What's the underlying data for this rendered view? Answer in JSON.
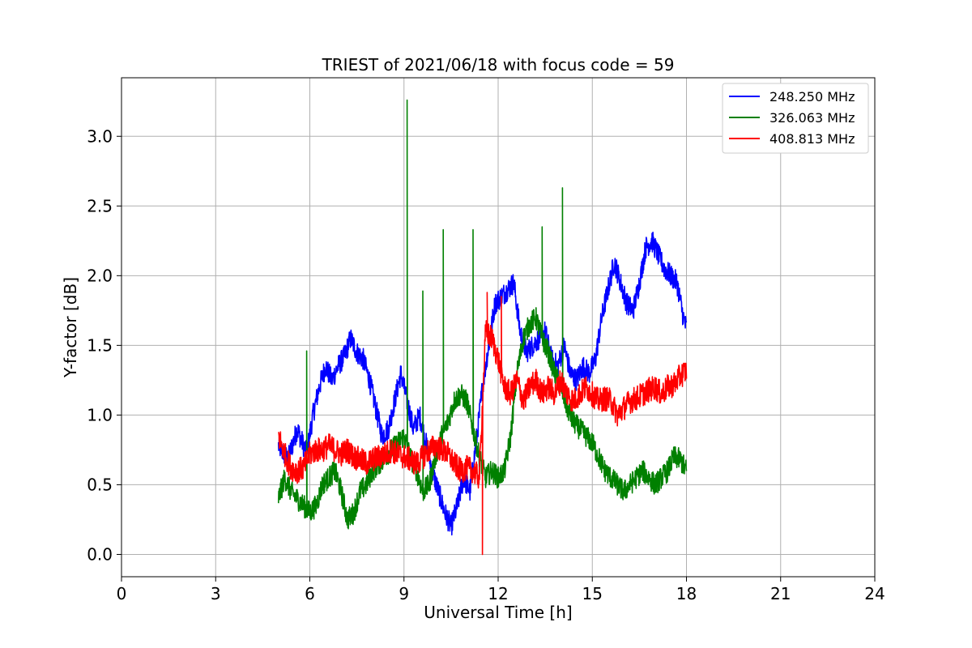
{
  "chart_data": {
    "type": "line",
    "title": "TRIEST of 2021/06/18 with focus code = 59",
    "xlabel": "Universal Time [h]",
    "ylabel": "Y-factor [dB]",
    "xlim": [
      0,
      24
    ],
    "ylim": [
      -0.16,
      3.42
    ],
    "xticks": [
      0,
      3,
      6,
      9,
      12,
      15,
      18,
      21,
      24
    ],
    "yticks": [
      0.0,
      0.5,
      1.0,
      1.5,
      2.0,
      2.5,
      3.0
    ],
    "ytick_labels": [
      "0.0",
      "0.5",
      "1.0",
      "1.5",
      "2.0",
      "2.5",
      "3.0"
    ],
    "grid": true,
    "legend_position": "top-right",
    "series": [
      {
        "name": "248.250 MHz",
        "color": "#0000ff",
        "points": [
          [
            5.0,
            0.78
          ],
          [
            5.3,
            0.68
          ],
          [
            5.6,
            0.9
          ],
          [
            5.9,
            0.72
          ],
          [
            6.1,
            1.0
          ],
          [
            6.3,
            1.2
          ],
          [
            6.5,
            1.35
          ],
          [
            6.7,
            1.25
          ],
          [
            6.9,
            1.35
          ],
          [
            7.1,
            1.42
          ],
          [
            7.3,
            1.55
          ],
          [
            7.5,
            1.45
          ],
          [
            7.7,
            1.4
          ],
          [
            7.9,
            1.25
          ],
          [
            8.1,
            1.05
          ],
          [
            8.3,
            0.85
          ],
          [
            8.5,
            0.9
          ],
          [
            8.7,
            1.1
          ],
          [
            8.9,
            1.3
          ],
          [
            9.1,
            1.1
          ],
          [
            9.3,
            0.9
          ],
          [
            9.5,
            1.0
          ],
          [
            9.7,
            0.8
          ],
          [
            9.9,
            0.6
          ],
          [
            10.1,
            0.45
          ],
          [
            10.3,
            0.3
          ],
          [
            10.5,
            0.2
          ],
          [
            10.7,
            0.35
          ],
          [
            10.9,
            0.55
          ],
          [
            11.1,
            0.45
          ],
          [
            11.3,
            0.8
          ],
          [
            11.5,
            1.2
          ],
          [
            11.7,
            1.5
          ],
          [
            11.9,
            1.8
          ],
          [
            12.1,
            1.85
          ],
          [
            12.3,
            1.9
          ],
          [
            12.5,
            1.95
          ],
          [
            12.7,
            1.6
          ],
          [
            12.9,
            1.45
          ],
          [
            13.1,
            1.5
          ],
          [
            13.3,
            1.55
          ],
          [
            13.5,
            1.6
          ],
          [
            13.7,
            1.4
          ],
          [
            13.9,
            1.35
          ],
          [
            14.1,
            1.5
          ],
          [
            14.3,
            1.3
          ],
          [
            14.5,
            1.25
          ],
          [
            14.7,
            1.35
          ],
          [
            14.9,
            1.3
          ],
          [
            15.1,
            1.4
          ],
          [
            15.3,
            1.7
          ],
          [
            15.5,
            1.9
          ],
          [
            15.7,
            2.1
          ],
          [
            15.9,
            1.95
          ],
          [
            16.1,
            1.8
          ],
          [
            16.3,
            1.75
          ],
          [
            16.5,
            1.95
          ],
          [
            16.7,
            2.2
          ],
          [
            16.9,
            2.25
          ],
          [
            17.1,
            2.15
          ],
          [
            17.3,
            2.05
          ],
          [
            17.5,
            2.0
          ],
          [
            17.7,
            1.95
          ],
          [
            17.9,
            1.7
          ],
          [
            18.0,
            1.62
          ]
        ]
      },
      {
        "name": "326.063 MHz",
        "color": "#008000",
        "points": [
          [
            5.0,
            0.4
          ],
          [
            5.2,
            0.55
          ],
          [
            5.4,
            0.45
          ],
          [
            5.6,
            0.4
          ],
          [
            5.8,
            0.35
          ],
          [
            6.0,
            0.3
          ],
          [
            6.2,
            0.35
          ],
          [
            6.4,
            0.5
          ],
          [
            6.6,
            0.55
          ],
          [
            6.8,
            0.6
          ],
          [
            7.0,
            0.45
          ],
          [
            7.2,
            0.25
          ],
          [
            7.4,
            0.3
          ],
          [
            7.6,
            0.45
          ],
          [
            7.8,
            0.5
          ],
          [
            8.0,
            0.6
          ],
          [
            8.2,
            0.65
          ],
          [
            8.4,
            0.7
          ],
          [
            8.6,
            0.75
          ],
          [
            8.8,
            0.8
          ],
          [
            9.0,
            0.85
          ],
          [
            9.2,
            0.7
          ],
          [
            9.4,
            0.6
          ],
          [
            9.6,
            0.45
          ],
          [
            9.8,
            0.5
          ],
          [
            10.0,
            0.7
          ],
          [
            10.2,
            0.85
          ],
          [
            10.4,
            0.95
          ],
          [
            10.6,
            1.1
          ],
          [
            10.8,
            1.15
          ],
          [
            11.0,
            1.1
          ],
          [
            11.2,
            0.9
          ],
          [
            11.4,
            0.7
          ],
          [
            11.6,
            0.55
          ],
          [
            11.8,
            0.6
          ],
          [
            12.0,
            0.55
          ],
          [
            12.2,
            0.6
          ],
          [
            12.4,
            0.85
          ],
          [
            12.6,
            1.3
          ],
          [
            12.8,
            1.55
          ],
          [
            13.0,
            1.65
          ],
          [
            13.2,
            1.7
          ],
          [
            13.4,
            1.55
          ],
          [
            13.6,
            1.45
          ],
          [
            13.8,
            1.3
          ],
          [
            14.0,
            1.2
          ],
          [
            14.2,
            1.05
          ],
          [
            14.4,
            0.95
          ],
          [
            14.6,
            0.9
          ],
          [
            14.8,
            0.85
          ],
          [
            15.0,
            0.8
          ],
          [
            15.2,
            0.7
          ],
          [
            15.4,
            0.6
          ],
          [
            15.6,
            0.55
          ],
          [
            15.8,
            0.5
          ],
          [
            16.0,
            0.45
          ],
          [
            16.2,
            0.5
          ],
          [
            16.4,
            0.55
          ],
          [
            16.6,
            0.6
          ],
          [
            16.8,
            0.55
          ],
          [
            17.0,
            0.5
          ],
          [
            17.2,
            0.55
          ],
          [
            17.4,
            0.6
          ],
          [
            17.6,
            0.7
          ],
          [
            17.8,
            0.68
          ],
          [
            18.0,
            0.6
          ]
        ],
        "spikes": [
          [
            5.9,
            1.46
          ],
          [
            9.1,
            3.26
          ],
          [
            9.6,
            1.89
          ],
          [
            10.25,
            2.33
          ],
          [
            11.2,
            2.33
          ],
          [
            13.4,
            2.35
          ],
          [
            14.05,
            2.63
          ]
        ]
      },
      {
        "name": "408.813 MHz",
        "color": "#ff0000",
        "points": [
          [
            5.0,
            0.85
          ],
          [
            5.2,
            0.72
          ],
          [
            5.4,
            0.62
          ],
          [
            5.6,
            0.6
          ],
          [
            5.8,
            0.62
          ],
          [
            6.0,
            0.72
          ],
          [
            6.2,
            0.75
          ],
          [
            6.4,
            0.75
          ],
          [
            6.6,
            0.78
          ],
          [
            6.8,
            0.75
          ],
          [
            7.0,
            0.72
          ],
          [
            7.2,
            0.75
          ],
          [
            7.4,
            0.7
          ],
          [
            7.6,
            0.68
          ],
          [
            7.8,
            0.65
          ],
          [
            8.0,
            0.68
          ],
          [
            8.2,
            0.7
          ],
          [
            8.4,
            0.72
          ],
          [
            8.6,
            0.75
          ],
          [
            8.8,
            0.72
          ],
          [
            9.0,
            0.7
          ],
          [
            9.2,
            0.68
          ],
          [
            9.4,
            0.65
          ],
          [
            9.6,
            0.7
          ],
          [
            9.8,
            0.75
          ],
          [
            10.0,
            0.78
          ],
          [
            10.2,
            0.75
          ],
          [
            10.4,
            0.72
          ],
          [
            10.6,
            0.65
          ],
          [
            10.8,
            0.6
          ],
          [
            11.0,
            0.62
          ],
          [
            11.2,
            0.6
          ],
          [
            11.4,
            0.55
          ],
          [
            11.6,
            1.6
          ],
          [
            11.8,
            1.55
          ],
          [
            12.0,
            1.4
          ],
          [
            12.2,
            1.2
          ],
          [
            12.4,
            1.15
          ],
          [
            12.6,
            1.25
          ],
          [
            12.8,
            1.1
          ],
          [
            13.0,
            1.2
          ],
          [
            13.2,
            1.25
          ],
          [
            13.4,
            1.15
          ],
          [
            13.6,
            1.2
          ],
          [
            13.8,
            1.15
          ],
          [
            14.0,
            1.25
          ],
          [
            14.2,
            1.15
          ],
          [
            14.4,
            1.1
          ],
          [
            14.6,
            1.15
          ],
          [
            14.8,
            1.2
          ],
          [
            15.0,
            1.15
          ],
          [
            15.2,
            1.1
          ],
          [
            15.4,
            1.12
          ],
          [
            15.6,
            1.1
          ],
          [
            15.8,
            1.0
          ],
          [
            16.0,
            1.05
          ],
          [
            16.2,
            1.1
          ],
          [
            16.4,
            1.12
          ],
          [
            16.6,
            1.15
          ],
          [
            16.8,
            1.18
          ],
          [
            17.0,
            1.2
          ],
          [
            17.2,
            1.15
          ],
          [
            17.4,
            1.2
          ],
          [
            17.6,
            1.22
          ],
          [
            17.8,
            1.28
          ],
          [
            18.0,
            1.32
          ]
        ],
        "spikes": [
          [
            11.5,
            0.0
          ],
          [
            11.65,
            1.88
          ],
          [
            12.1,
            1.85
          ]
        ]
      }
    ]
  }
}
